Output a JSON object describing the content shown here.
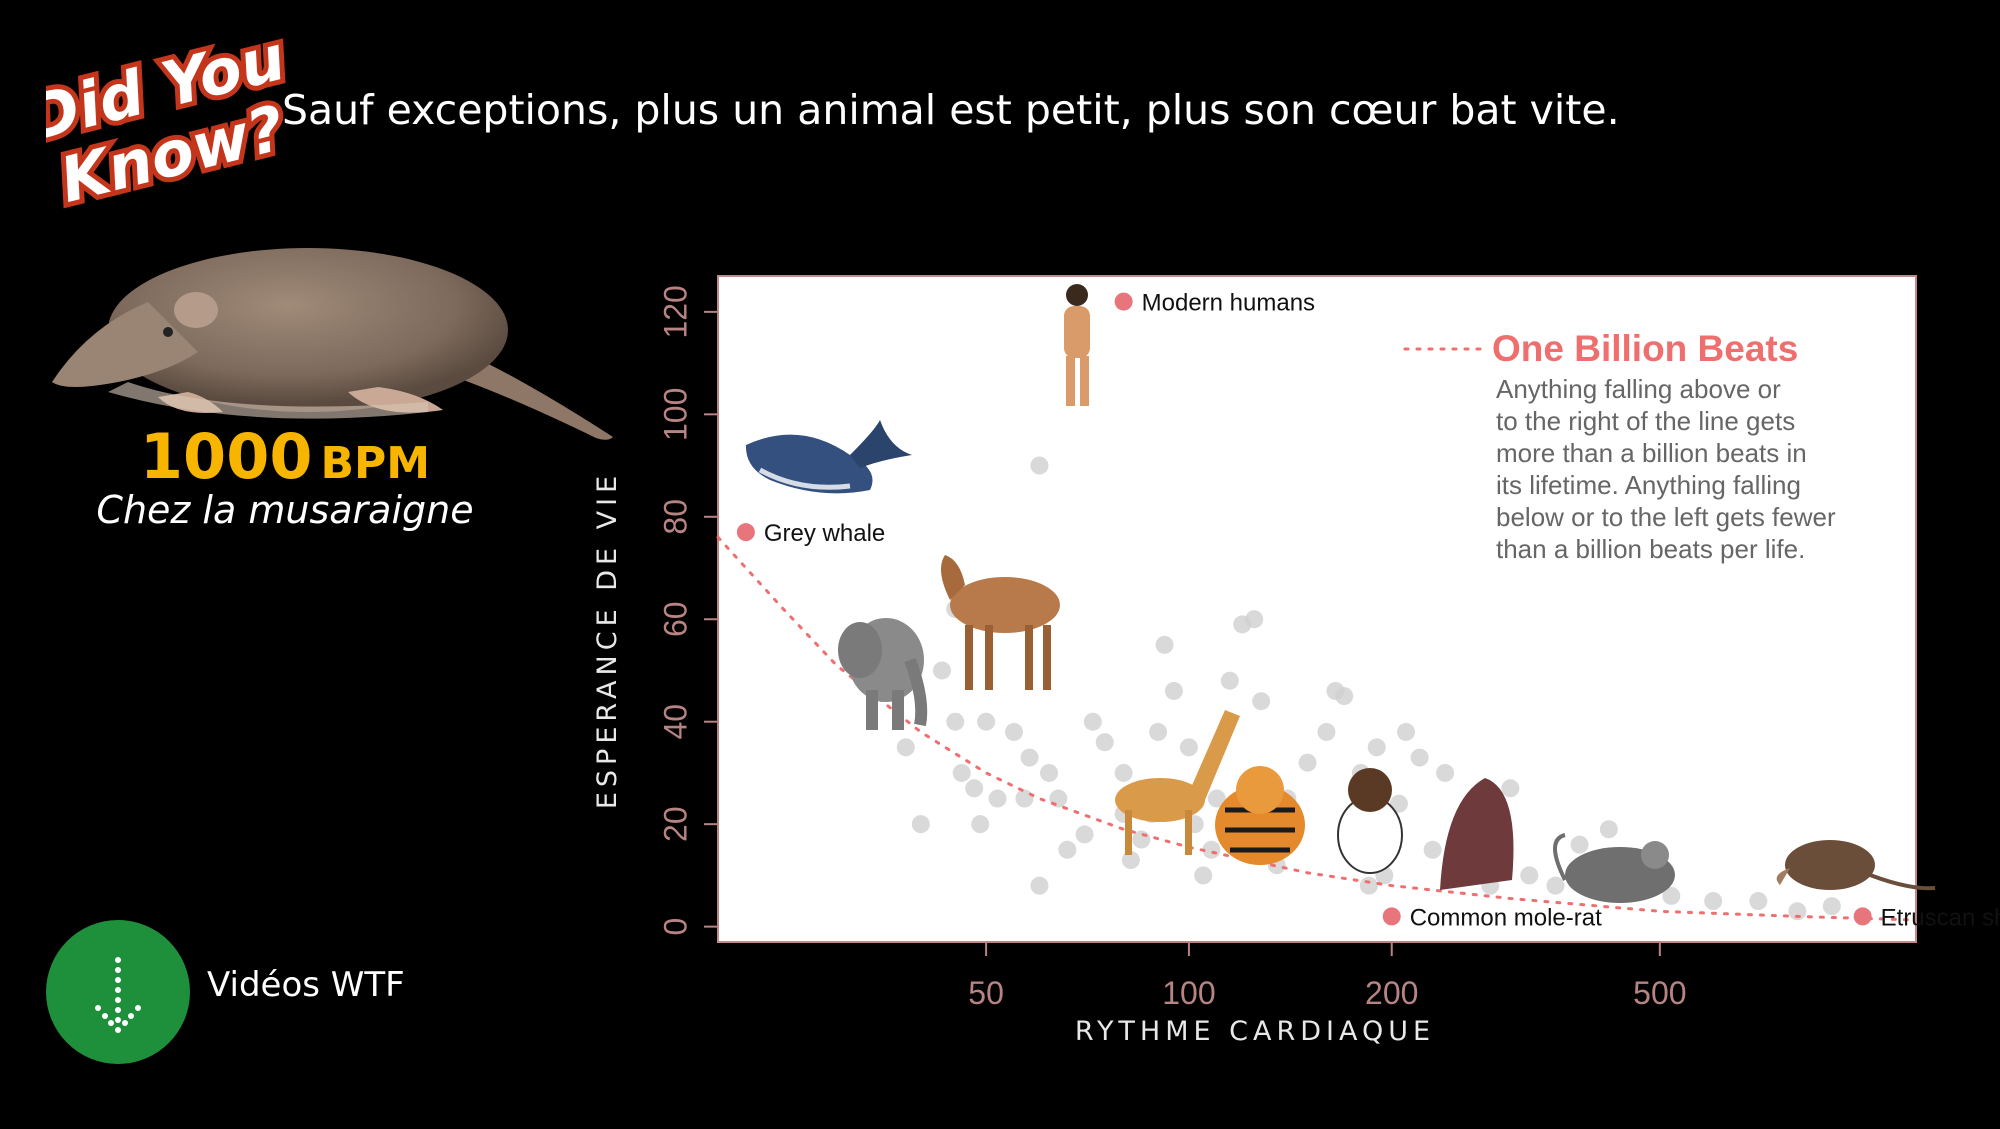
{
  "logo": {
    "line1": "Did You",
    "line2": "Know?"
  },
  "headline": "Sauf exceptions, plus un animal est petit, plus son cœur bat vite.",
  "highlight": {
    "value": "1000",
    "unit": "BPM",
    "caption": "Chez la musaraigne",
    "color": "#f7b500"
  },
  "video_link": {
    "label": "Vidéos WTF",
    "icon": "down-arrow-icon",
    "color": "#1e8f3b"
  },
  "chart_data": {
    "type": "scatter",
    "xlabel": "RYTHME CARDIAQUE",
    "ylabel": "ESPERANCE DE VIE",
    "x_scale": "log",
    "xlim": [
      20,
      1200
    ],
    "ylim": [
      -3,
      127
    ],
    "x_ticks": [
      {
        "value": 50,
        "label": "50"
      },
      {
        "value": 100,
        "label": "100"
      },
      {
        "value": 200,
        "label": "200"
      },
      {
        "value": 500,
        "label": "500"
      }
    ],
    "y_ticks": [
      {
        "value": 0,
        "label": "0"
      },
      {
        "value": 20,
        "label": "20"
      },
      {
        "value": 40,
        "label": "40"
      },
      {
        "value": 60,
        "label": "60"
      },
      {
        "value": 80,
        "label": "80"
      },
      {
        "value": 100,
        "label": "100"
      },
      {
        "value": 120,
        "label": "120"
      }
    ],
    "legend": {
      "title": "One Billion Beats",
      "lines": [
        "Anything falling above or",
        "to the right of the line gets",
        "more than a billion beats in",
        "its lifetime.  Anything falling",
        "below or to the left gets fewer",
        "than a billion beats per life."
      ],
      "placement": "top-right",
      "line_color": "#ef6f6f"
    },
    "highlighted": [
      {
        "label": "Modern humans",
        "x": 80,
        "y": 122
      },
      {
        "label": "Grey whale",
        "x": 22,
        "y": 77
      },
      {
        "label": "Common mole-rat",
        "x": 200,
        "y": 2
      },
      {
        "label": "Etruscan shrew",
        "x": 1000,
        "y": 2
      }
    ],
    "highlight_color": "#e8747c",
    "background_color": "#cfcfcf",
    "background_points": [
      [
        45,
        62
      ],
      [
        38,
        35
      ],
      [
        40,
        20
      ],
      [
        43,
        50
      ],
      [
        45,
        40
      ],
      [
        46,
        30
      ],
      [
        48,
        27
      ],
      [
        50,
        40
      ],
      [
        52,
        25
      ],
      [
        49,
        20
      ],
      [
        55,
        38
      ],
      [
        57,
        25
      ],
      [
        58,
        33
      ],
      [
        60,
        90
      ],
      [
        60,
        8
      ],
      [
        62,
        30
      ],
      [
        64,
        25
      ],
      [
        66,
        15
      ],
      [
        70,
        18
      ],
      [
        72,
        40
      ],
      [
        75,
        36
      ],
      [
        80,
        30
      ],
      [
        80,
        22
      ],
      [
        82,
        13
      ],
      [
        85,
        17
      ],
      [
        88,
        22
      ],
      [
        90,
        38
      ],
      [
        92,
        55
      ],
      [
        95,
        46
      ],
      [
        100,
        35
      ],
      [
        102,
        20
      ],
      [
        105,
        10
      ],
      [
        108,
        15
      ],
      [
        110,
        25
      ],
      [
        115,
        48
      ],
      [
        120,
        59
      ],
      [
        125,
        60
      ],
      [
        128,
        44
      ],
      [
        130,
        20
      ],
      [
        135,
        12
      ],
      [
        140,
        25
      ],
      [
        150,
        32
      ],
      [
        160,
        38
      ],
      [
        165,
        46
      ],
      [
        170,
        45
      ],
      [
        175,
        18
      ],
      [
        180,
        30
      ],
      [
        185,
        8
      ],
      [
        190,
        35
      ],
      [
        195,
        10
      ],
      [
        200,
        20
      ],
      [
        205,
        24
      ],
      [
        210,
        38
      ],
      [
        220,
        33
      ],
      [
        230,
        15
      ],
      [
        240,
        30
      ],
      [
        250,
        12
      ],
      [
        260,
        22
      ],
      [
        280,
        8
      ],
      [
        300,
        27
      ],
      [
        320,
        10
      ],
      [
        350,
        8
      ],
      [
        380,
        16
      ],
      [
        420,
        19
      ],
      [
        450,
        12
      ],
      [
        480,
        10
      ],
      [
        520,
        6
      ],
      [
        600,
        5
      ],
      [
        700,
        5
      ],
      [
        800,
        3
      ],
      [
        900,
        4
      ]
    ],
    "reference_curve": [
      [
        20,
        76
      ],
      [
        25,
        62
      ],
      [
        30,
        51
      ],
      [
        40,
        38
      ],
      [
        50,
        30
      ],
      [
        60,
        25
      ],
      [
        80,
        19
      ],
      [
        100,
        15.5
      ],
      [
        150,
        10.5
      ],
      [
        200,
        8
      ],
      [
        300,
        5.5
      ],
      [
        500,
        3
      ],
      [
        800,
        2
      ],
      [
        1200,
        1.3
      ]
    ],
    "series": [
      {
        "values": [
          [
            45,
            62
          ],
          [
            38,
            35
          ],
          [
            40,
            20
          ]
        ]
      }
    ]
  }
}
